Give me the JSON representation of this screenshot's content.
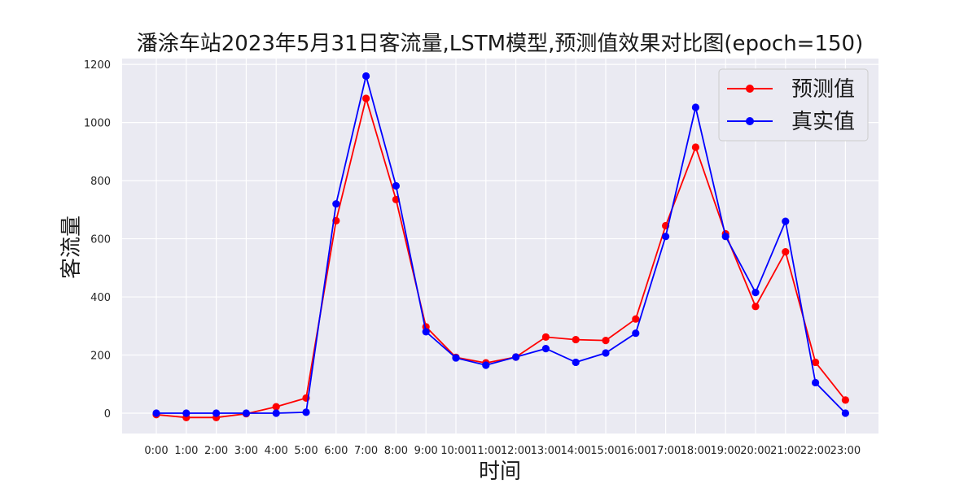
{
  "chart_data": {
    "type": "line",
    "title": "潘涂车站2023年5月31日客流量,LSTM模型,预测值效果对比图(epoch=150)",
    "xlabel": "时间",
    "ylabel": "客流量",
    "categories": [
      "0:00",
      "1:00",
      "2:00",
      "3:00",
      "4:00",
      "5:00",
      "6:00",
      "7:00",
      "8:00",
      "9:00",
      "10:00",
      "11:00",
      "12:00",
      "13:00",
      "14:00",
      "15:00",
      "16:00",
      "17:00",
      "18:00",
      "19:00",
      "20:00",
      "21:00",
      "22:00",
      "23:00"
    ],
    "ylim": [
      -70,
      1220
    ],
    "yticks": [
      0,
      200,
      400,
      600,
      800,
      1000,
      1200
    ],
    "grid": true,
    "legend_position": "top-right",
    "series": [
      {
        "name": "预测值",
        "color": "#ff0000",
        "values": [
          -5,
          -15,
          -15,
          -2,
          22,
          52,
          662,
          1083,
          735,
          297,
          192,
          173,
          193,
          262,
          253,
          250,
          324,
          645,
          915,
          617,
          367,
          555,
          175,
          45
        ]
      },
      {
        "name": "真实值",
        "color": "#0000ff",
        "values": [
          0,
          0,
          0,
          0,
          0,
          3,
          720,
          1160,
          782,
          280,
          190,
          165,
          193,
          222,
          175,
          207,
          275,
          608,
          1052,
          608,
          415,
          660,
          105,
          0
        ]
      }
    ]
  }
}
